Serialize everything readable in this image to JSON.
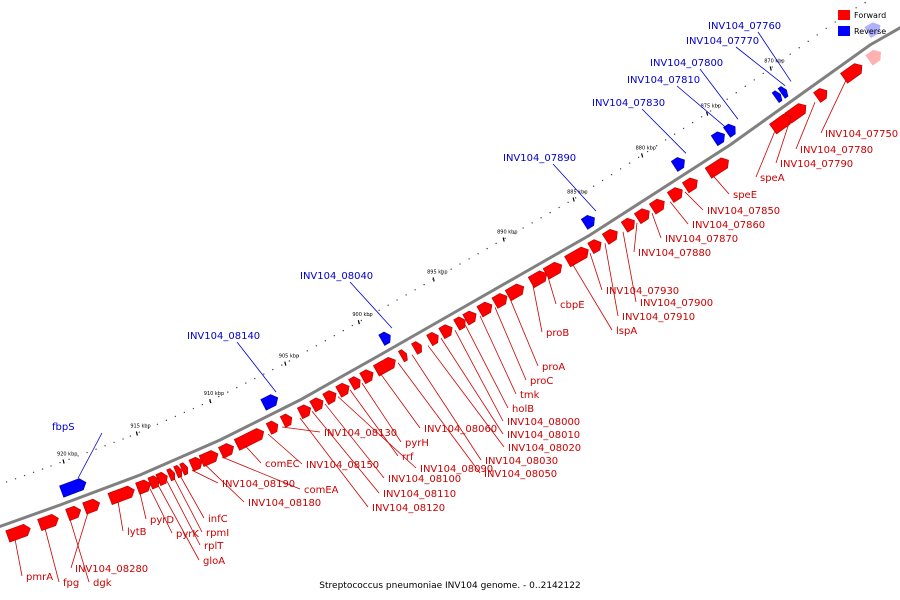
{
  "caption": "Streptococcus pneumoniae INV104 genome. - 0..2142122",
  "legend": [
    {
      "label": "Forward",
      "color": "#ff0000"
    },
    {
      "label": "Reverse",
      "color": "#0000ff"
    }
  ],
  "colors": {
    "forward": "#ff0000",
    "forward_edge": "#b00000",
    "reverse": "#0000ff",
    "reverse_edge": "#0000a0",
    "backbone": "#808080",
    "label_forward": "#cc0000",
    "label_reverse": "#0000cc"
  },
  "ticks": [
    {
      "kbp": 870,
      "label": "870 kbp"
    },
    {
      "kbp": 875,
      "label": "875 kbp"
    },
    {
      "kbp": 880,
      "label": "880 kbp"
    },
    {
      "kbp": 885,
      "label": "885 kbp"
    },
    {
      "kbp": 890,
      "label": "890 kbp"
    },
    {
      "kbp": 895,
      "label": "895 kbp"
    },
    {
      "kbp": 900,
      "label": "900 kbp"
    },
    {
      "kbp": 905,
      "label": "905 kbp"
    },
    {
      "kbp": 910,
      "label": "910 kbp"
    },
    {
      "kbp": 915,
      "label": "915 kbp"
    },
    {
      "kbp": 920,
      "label": "920 kbp"
    }
  ],
  "forward_genes": [
    "INV104_07750",
    "INV104_07780",
    "INV104_07790",
    "speA",
    "speE",
    "INV104_07850",
    "INV104_07860",
    "INV104_07870",
    "INV104_07880",
    "INV104_07900",
    "INV104_07910",
    "INV104_07930",
    "lspA",
    "cbpE",
    "proB",
    "proA",
    "proC",
    "tmk",
    "holB",
    "INV104_08000",
    "INV104_08010",
    "INV104_08020",
    "INV104_08030",
    "INV104_08050",
    "INV104_08060",
    "pyrH",
    "rrf",
    "INV104_08090",
    "INV104_08100",
    "INV104_08110",
    "INV104_08120",
    "INV104_08130",
    "INV104_08150",
    "comEC",
    "comEA",
    "INV104_08180",
    "INV104_08190",
    "infC",
    "rpmI",
    "rplT",
    "gloA",
    "pyrK",
    "pyrD",
    "lytB",
    "INV104_08280",
    "dgk",
    "fpg",
    "pmrA"
  ],
  "reverse_genes": [
    "INV104_07760",
    "INV104_07770",
    "INV104_07800",
    "INV104_07810",
    "INV104_07830",
    "INV104_07890",
    "INV104_08040",
    "INV104_08140",
    "fbpS"
  ]
}
